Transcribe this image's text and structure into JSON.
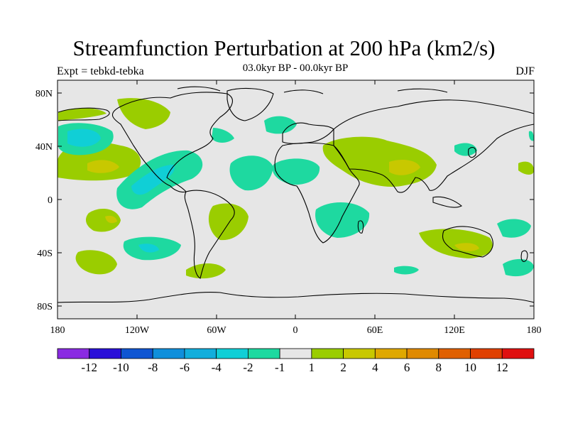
{
  "title": "Streamfunction Perturbation at 200 hPa (km2/s)",
  "subtitle_left": "Expt = tebkd-tebka",
  "subtitle_center": "03.0kyr BP - 00.0kyr BP",
  "subtitle_right": "DJF",
  "lat_labels": [
    "80N",
    "40N",
    "0",
    "40S",
    "80S"
  ],
  "lon_labels": [
    "180",
    "120W",
    "60W",
    "0",
    "60E",
    "120E",
    "180"
  ],
  "colorbar": {
    "colors": [
      "#8A2BE2",
      "#2A10D8",
      "#0F55D2",
      "#108FDB",
      "#12AEDC",
      "#10CFD6",
      "#1ED9A0",
      "#E6E6E6",
      "#9ACD00",
      "#C8C800",
      "#DFA800",
      "#E08A00",
      "#E06000",
      "#E04000",
      "#E01010"
    ],
    "labels": [
      "-12",
      "-10",
      "-8",
      "-6",
      "-4",
      "-2",
      "-1",
      "1",
      "2",
      "4",
      "6",
      "8",
      "10",
      "12"
    ]
  },
  "palette": {
    "background": "#E6E6E6",
    "pos1": "#9ACD00",
    "pos2": "#C8C800",
    "pos3": "#DFA800",
    "neg1": "#1ED9A0",
    "neg2": "#10CFD6",
    "neg3": "#12AEDC"
  }
}
